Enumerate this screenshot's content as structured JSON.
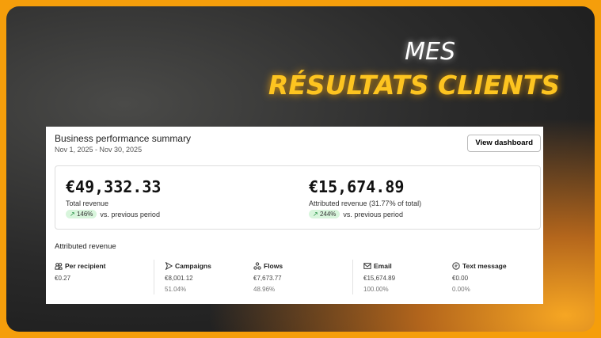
{
  "banner": {
    "line1": "MES",
    "line2": "RÉSULTATS CLIENTS"
  },
  "summary": {
    "title": "Business performance summary",
    "date_range": "Nov 1, 2025 - Nov 30, 2025",
    "view_dashboard": "View dashboard"
  },
  "total": {
    "value": "€49,332.33",
    "label": "Total revenue",
    "change": "146%",
    "compare": "vs. previous period"
  },
  "attributed": {
    "value": "€15,674.89",
    "label": "Attributed revenue (31.77% of total)",
    "change": "244%",
    "compare": "vs. previous period"
  },
  "breakdown": {
    "title": "Attributed revenue",
    "columns": [
      {
        "label": "Per recipient",
        "icon": "users-icon",
        "value": "€0.27",
        "percent": ""
      },
      {
        "label": "Campaigns",
        "icon": "send-icon",
        "value": "€8,001.12",
        "percent": "51.04%"
      },
      {
        "label": "Flows",
        "icon": "flows-icon",
        "value": "€7,673.77",
        "percent": "48.96%"
      },
      {
        "label": "Email",
        "icon": "mail-icon",
        "value": "€15,674.89",
        "percent": "100.00%"
      },
      {
        "label": "Text message",
        "icon": "sms-icon",
        "value": "€0.00",
        "percent": "0.00%"
      }
    ]
  },
  "colors": {
    "frame": "#f59e0b",
    "headline": "#fdc420",
    "positive": "#d8f5dc"
  }
}
